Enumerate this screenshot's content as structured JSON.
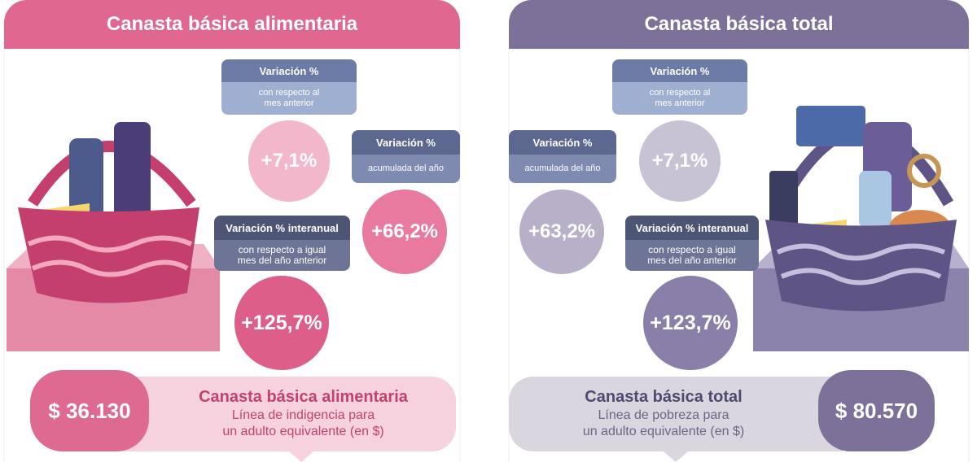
{
  "left": {
    "header": "Canasta básica alimentaria",
    "monthly": {
      "label": "Variación %",
      "note": [
        "con respecto al",
        "mes anterior"
      ],
      "value": "+7,1%"
    },
    "accumulated": {
      "label": "Variación %",
      "note": [
        "acumulada del año"
      ],
      "value": "+66,2%"
    },
    "interannual": {
      "label": "Variación % interanual",
      "note": [
        "con respecto a igual",
        "mes del año anterior"
      ],
      "value": "+125,7%"
    },
    "price": "$ 36.130",
    "footer": {
      "title": "Canasta básica alimentaria",
      "lines": [
        "Línea de indigencia para",
        "un adulto equivalente (en $)"
      ]
    }
  },
  "right": {
    "header": "Canasta básica total",
    "monthly": {
      "label": "Variación %",
      "note": [
        "con respecto al",
        "mes anterior"
      ],
      "value": "+7,1%"
    },
    "accumulated": {
      "label": "Variación %",
      "note": [
        "acumulada del año"
      ],
      "value": "+63,2%"
    },
    "interannual": {
      "label": "Variación % interanual",
      "note": [
        "con respecto a igual",
        "mes del año anterior"
      ],
      "value": "+123,7%"
    },
    "price": "$ 80.570",
    "footer": {
      "title": "Canasta básica total",
      "lines": [
        "Línea de pobreza para",
        "un adulto equivalente (en $)"
      ]
    }
  }
}
